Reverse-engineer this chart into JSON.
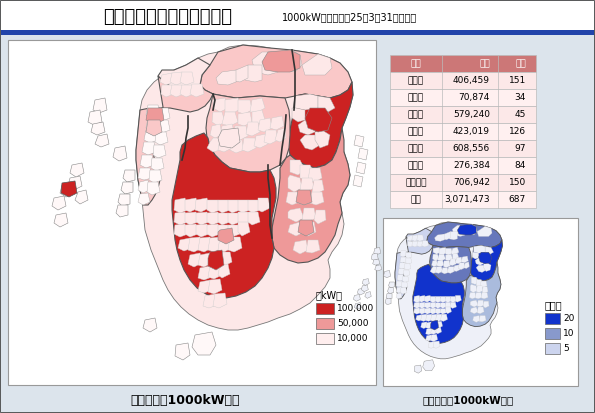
{
  "title_main": "九州の太陽光発電認定状況",
  "title_sub": "1000kW以上（平成25年3月31日現在）",
  "bg_color": "#c8d0d8",
  "content_bg": "#dce4ec",
  "header_bar_color": "#2244aa",
  "map_bg": "#ffffff",
  "table_header_color": "#cc7777",
  "table_data": [
    [
      "県別",
      "出力",
      "件数"
    ],
    [
      "福岡県",
      "406,459",
      "151"
    ],
    [
      "佐賀県",
      "70,874",
      "34"
    ],
    [
      "長崎県",
      "579,240",
      "45"
    ],
    [
      "熊本県",
      "423,019",
      "126"
    ],
    [
      "大分県",
      "608,556",
      "97"
    ],
    [
      "宮崎県",
      "276,384",
      "84"
    ],
    [
      "鹿児島県",
      "706,942",
      "150"
    ],
    [
      "合計",
      "3,071,473",
      "687"
    ]
  ],
  "legend_kw_title": "（kW）",
  "legend_kw_items": [
    {
      "label": "100,000",
      "color": "#cc2222"
    },
    {
      "label": "50,000",
      "color": "#ee9999"
    },
    {
      "label": "10,000",
      "color": "#ffeeee"
    }
  ],
  "legend_ken_title": "（件）",
  "legend_ken_items": [
    {
      "label": "20",
      "color": "#1133cc"
    },
    {
      "label": "10",
      "color": "#8899cc"
    },
    {
      "label": "5",
      "color": "#ccd4ee"
    }
  ],
  "label_left": "太陽光発電1000kW以上",
  "label_right": "太陽光発電1000kW以上",
  "outer_border": "#444444",
  "map_border": "#666666"
}
